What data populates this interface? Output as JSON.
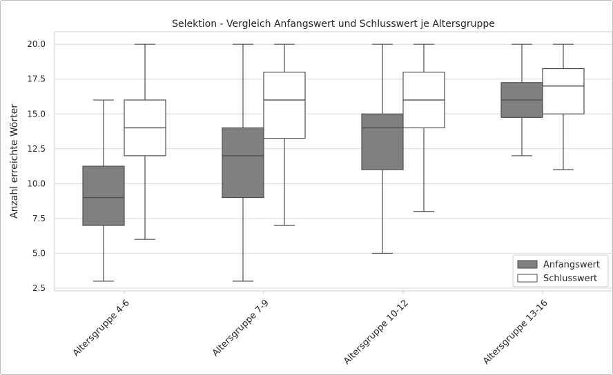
{
  "chart_data": {
    "type": "box",
    "title": "Selektion - Vergleich Anfangswert und Schlusswert je Altersgruppe",
    "xlabel": "",
    "ylabel": "Anzahl erreichte Wörter",
    "ylim": [
      2.3,
      20.9
    ],
    "yticks": [
      "2.5",
      "5.0",
      "7.5",
      "10.0",
      "12.5",
      "15.0",
      "17.5",
      "20.0"
    ],
    "categories": [
      "Altersgruppe 4-6",
      "Altersgruppe 7-9",
      "Altersgruppe 10-12",
      "Altersgruppe 13-16"
    ],
    "grid": true,
    "legend_position": "bottom-right",
    "series": [
      {
        "name": "Anfangswert",
        "color": "#808080",
        "boxes": [
          {
            "whisker_low": 3,
            "q1": 7,
            "median": 9,
            "q3": 11.25,
            "whisker_high": 16
          },
          {
            "whisker_low": 3,
            "q1": 9,
            "median": 12,
            "q3": 14,
            "whisker_high": 20
          },
          {
            "whisker_low": 5,
            "q1": 11,
            "median": 14,
            "q3": 15,
            "whisker_high": 20
          },
          {
            "whisker_low": 12,
            "q1": 14.75,
            "median": 16,
            "q3": 17.25,
            "whisker_high": 20
          }
        ]
      },
      {
        "name": "Schlusswert",
        "color": "#ffffff",
        "boxes": [
          {
            "whisker_low": 6,
            "q1": 12,
            "median": 14,
            "q3": 16,
            "whisker_high": 20
          },
          {
            "whisker_low": 7,
            "q1": 13.25,
            "median": 16,
            "q3": 18,
            "whisker_high": 20
          },
          {
            "whisker_low": 8,
            "q1": 14,
            "median": 16,
            "q3": 18,
            "whisker_high": 20
          },
          {
            "whisker_low": 11,
            "q1": 15,
            "median": 17,
            "q3": 18.25,
            "whisker_high": 20
          }
        ]
      }
    ]
  }
}
